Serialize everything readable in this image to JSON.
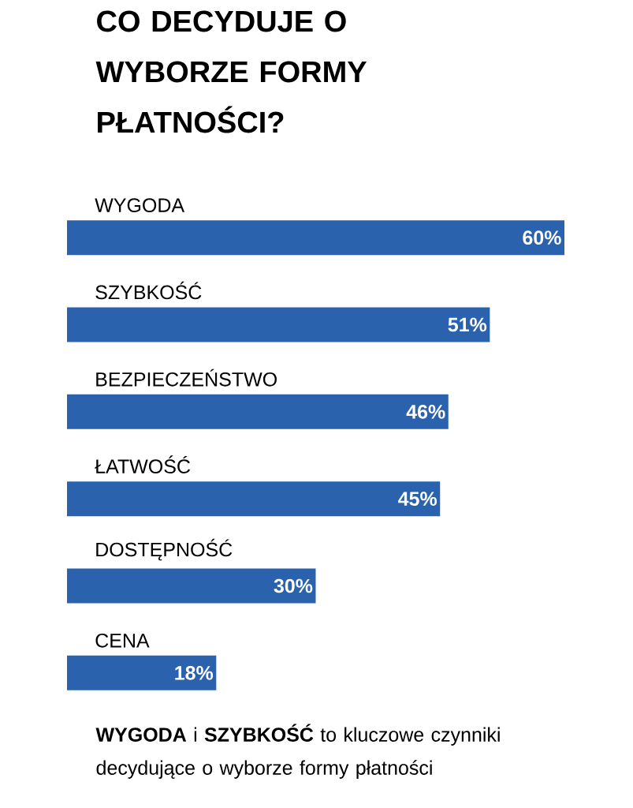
{
  "chart_data": {
    "type": "bar",
    "orientation": "horizontal",
    "title": "CO DECYDUJE O WYBORZE FORMY PŁATNOŚCI?",
    "categories": [
      "WYGODA",
      "SZYBKOŚĆ",
      "BEZPIECZEŃSTWO",
      "ŁATWOŚĆ",
      "DOSTĘPNOŚĆ",
      "CENA"
    ],
    "values": [
      60,
      51,
      46,
      45,
      30,
      18
    ],
    "value_labels": [
      "60%",
      "51%",
      "46%",
      "45%",
      "30%",
      "18%"
    ],
    "color": "#2a62ae",
    "annotations": [
      "**WYGODA** i **SZYBKOŚĆ** to kluczowe czynniki decydujące o wyborze formy płatności"
    ]
  }
}
